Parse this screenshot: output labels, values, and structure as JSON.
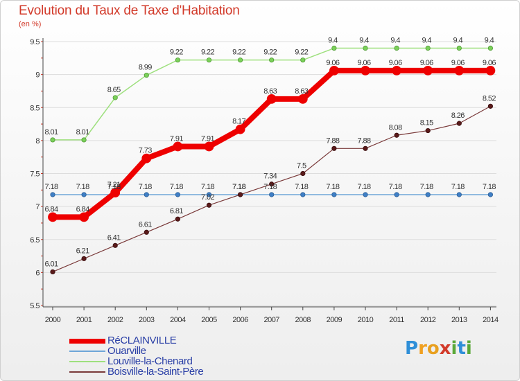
{
  "chart_data": {
    "type": "line",
    "title": "Evolution du Taux de Taxe d'Habitation",
    "ylabel": "(en %)",
    "xlabel": "",
    "ylim": [
      5.5,
      9.5
    ],
    "yticks": [
      "5.5",
      "6",
      "6.5",
      "7",
      "7.5",
      "8",
      "8.5",
      "9",
      "9.5"
    ],
    "categories": [
      "2000",
      "2001",
      "2002",
      "2003",
      "2004",
      "2005",
      "2006",
      "2007",
      "2008",
      "2009",
      "2010",
      "2011",
      "2012",
      "2013",
      "2014"
    ],
    "series": [
      {
        "name": "RéCLAINVILLE",
        "color": "#ee0000",
        "values": [
          6.84,
          6.84,
          7.21,
          7.73,
          7.91,
          7.91,
          8.17,
          8.63,
          8.63,
          9.06,
          9.06,
          9.06,
          9.06,
          9.06,
          9.06
        ],
        "labels": [
          "6.84",
          "6.84",
          "7.21",
          "7.73",
          "7.91",
          "7.91",
          "8.17",
          "8.63",
          "8.63",
          "9.06",
          "9.06",
          "9.06",
          "9.06",
          "9.06",
          "9.06"
        ]
      },
      {
        "name": "Ouarville",
        "color": "#6ea6d8",
        "values": [
          7.18,
          7.18,
          7.18,
          7.18,
          7.18,
          7.18,
          7.18,
          7.18,
          7.18,
          7.18,
          7.18,
          7.18,
          7.18,
          7.18,
          7.18
        ],
        "labels": [
          "7.18",
          "7.18",
          "7.18",
          "7.18",
          "7.18",
          "7.18",
          "7.18",
          "7.18",
          "7.18",
          "7.18",
          "7.18",
          "7.18",
          "7.18",
          "7.18",
          "7.18"
        ]
      },
      {
        "name": "Louville-la-Chenard",
        "color": "#9ee07e",
        "values": [
          8.01,
          8.01,
          8.65,
          8.99,
          9.22,
          9.22,
          9.22,
          9.22,
          9.22,
          9.4,
          9.4,
          9.4,
          9.4,
          9.4,
          9.4
        ],
        "labels": [
          "8.01",
          "8.01",
          "8.65",
          "8.99",
          "9.22",
          "9.22",
          "9.22",
          "9.22",
          "9.22",
          "9.4",
          "9.4",
          "9.4",
          "9.4",
          "9.4",
          "9.4"
        ]
      },
      {
        "name": "Boisville-la-Saint-Père",
        "color": "#7a3a3a",
        "values": [
          6.01,
          6.21,
          6.41,
          6.61,
          6.81,
          7.02,
          7.18,
          7.34,
          7.5,
          7.88,
          7.88,
          8.08,
          8.15,
          8.26,
          8.52
        ],
        "labels": [
          "6.01",
          "6.21",
          "6.41",
          "6.61",
          "6.81",
          "7.02",
          "7.18",
          "7.34",
          "7.5",
          "7.88",
          "7.88",
          "8.08",
          "8.15",
          "8.26",
          "8.52"
        ]
      }
    ]
  },
  "logo": {
    "letters": [
      "P",
      "r",
      "o",
      "x",
      "i",
      "t",
      "i"
    ],
    "colors": [
      "#2f8fd8",
      "#f0a020",
      "#e8a020",
      "#d23a2a",
      "#5aa838",
      "#2f8fd8",
      "#5aa838"
    ]
  }
}
